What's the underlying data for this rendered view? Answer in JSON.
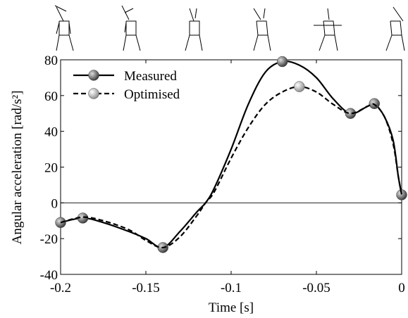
{
  "chart_data": {
    "type": "line",
    "xlabel": "Time [s]",
    "ylabel": "Angular acceleration [rad/s²]",
    "x": [
      -0.2,
      -0.187,
      -0.175,
      -0.16,
      -0.15,
      -0.14,
      -0.13,
      -0.12,
      -0.115,
      -0.11,
      -0.1,
      -0.09,
      -0.08,
      -0.07,
      -0.06,
      -0.05,
      -0.04,
      -0.03,
      -0.02,
      -0.016,
      -0.01,
      -0.005,
      -0.002,
      0
    ],
    "series": [
      {
        "name": "Measured",
        "color": "#000000",
        "line_style": "solid",
        "values": [
          -11,
          -8.5,
          -11,
          -16,
          -20,
          -25,
          -16,
          -5,
          0,
          8,
          30,
          55,
          73,
          79,
          77,
          70,
          58,
          50,
          54,
          55.5,
          48,
          35,
          15,
          4.5
        ],
        "markers": {
          "x": [
            -0.2,
            -0.187,
            -0.14,
            -0.07,
            -0.03,
            -0.016,
            0
          ],
          "values": [
            -11,
            -8.5,
            -25,
            79,
            50,
            55.5,
            4.5
          ],
          "color": "#555555"
        }
      },
      {
        "name": "Optimised",
        "color": "#000000",
        "line_style": "dashed",
        "values": [
          -11,
          -8,
          -10,
          -15,
          -21,
          -25,
          -19,
          -7,
          0,
          6,
          25,
          42,
          55,
          62,
          65,
          62,
          55,
          50,
          54,
          55,
          48,
          33,
          15,
          4.5
        ],
        "markers": {
          "x": [
            -0.06
          ],
          "values": [
            65
          ],
          "color": "#bbbbbb"
        }
      }
    ],
    "xlim": [
      -0.2,
      0
    ],
    "xticks": [
      -0.2,
      -0.15,
      -0.1,
      -0.05,
      0
    ],
    "ylim": [
      -40,
      80
    ],
    "yticks": [
      -40,
      -20,
      0,
      20,
      40,
      60,
      80
    ],
    "zero_line": true,
    "legend": "upper-left"
  }
}
